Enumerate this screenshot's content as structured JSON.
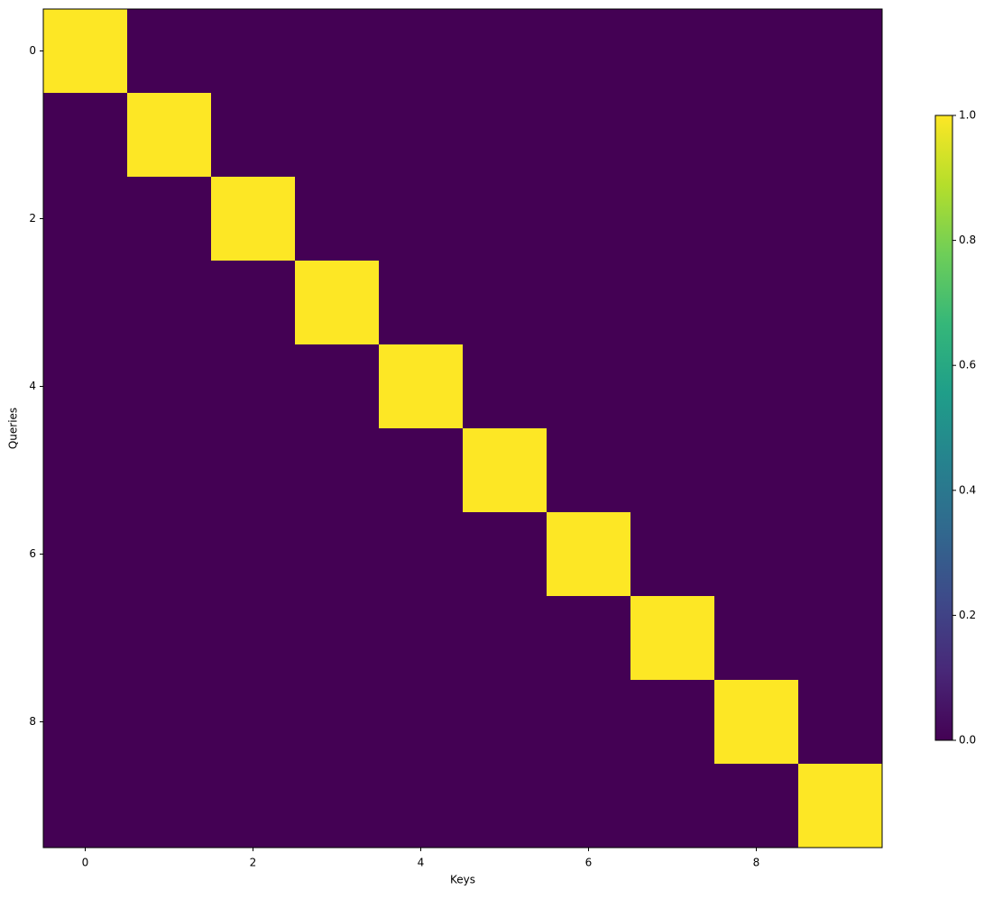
{
  "chart_data": {
    "type": "heatmap",
    "x_label": "Keys",
    "y_label": "Queries",
    "colormap": "viridis",
    "values": [
      [
        1,
        0,
        0,
        0,
        0,
        0,
        0,
        0,
        0,
        0
      ],
      [
        0,
        1,
        0,
        0,
        0,
        0,
        0,
        0,
        0,
        0
      ],
      [
        0,
        0,
        1,
        0,
        0,
        0,
        0,
        0,
        0,
        0
      ],
      [
        0,
        0,
        0,
        1,
        0,
        0,
        0,
        0,
        0,
        0
      ],
      [
        0,
        0,
        0,
        0,
        1,
        0,
        0,
        0,
        0,
        0
      ],
      [
        0,
        0,
        0,
        0,
        0,
        1,
        0,
        0,
        0,
        0
      ],
      [
        0,
        0,
        0,
        0,
        0,
        0,
        1,
        0,
        0,
        0
      ],
      [
        0,
        0,
        0,
        0,
        0,
        0,
        0,
        1,
        0,
        0
      ],
      [
        0,
        0,
        0,
        0,
        0,
        0,
        0,
        0,
        1,
        0
      ],
      [
        0,
        0,
        0,
        0,
        0,
        0,
        0,
        0,
        0,
        1
      ]
    ],
    "xlim": [
      -0.5,
      9.5
    ],
    "xticks": [
      0,
      2,
      4,
      6,
      8
    ],
    "ylim": [
      9.5,
      -0.5
    ],
    "yticks": [
      0,
      2,
      4,
      6,
      8
    ],
    "clim": [
      0,
      1
    ],
    "cticks": [
      {
        "value": 0,
        "label": "0.0"
      },
      {
        "value": 0.2,
        "label": "0.2"
      },
      {
        "value": 0.4,
        "label": "0.4"
      },
      {
        "value": 0.6,
        "label": "0.6"
      },
      {
        "value": 0.8,
        "label": "0.8"
      },
      {
        "value": 1,
        "label": "1.0"
      }
    ]
  }
}
